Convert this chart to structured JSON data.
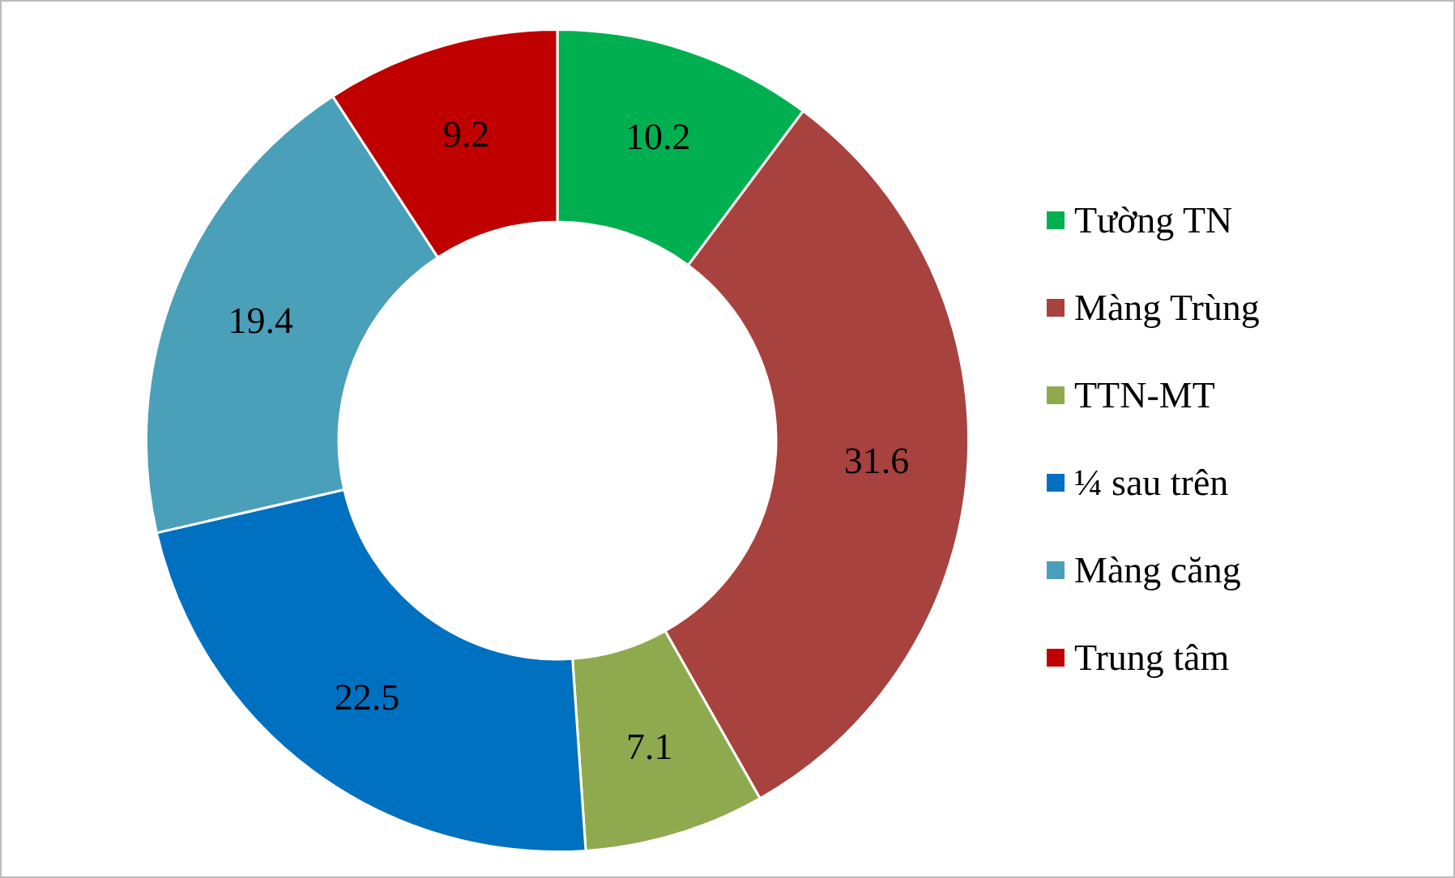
{
  "chart_data": {
    "type": "donut",
    "categories": [
      "Tường TN",
      "Màng Trùng",
      "TTN-MT",
      "¼ sau trên",
      "Màng căng",
      "Trung tâm"
    ],
    "values": [
      10.2,
      31.6,
      7.1,
      22.5,
      19.4,
      9.2
    ],
    "colors": [
      "#00b050",
      "#a8423f",
      "#8faa4e",
      "#0070c0",
      "#4aa0b8",
      "#c00000"
    ],
    "data_labels": true,
    "legend": "right"
  }
}
